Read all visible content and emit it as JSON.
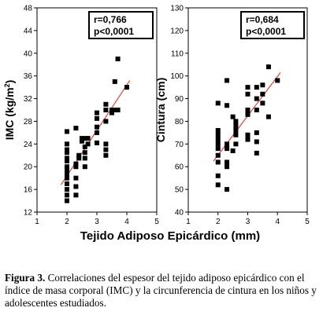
{
  "figure": {
    "shared_xlabel": "Tejido Adiposo Epicárdico (mm)",
    "caption_label": "Figura 3.",
    "caption_text": " Correlaciones del espesor del tejido adiposo epicárdico con el índice de masa corporal (IMC) y la circunferencia de cintura en los niños y adolescentes estudiados."
  },
  "chart_data": [
    {
      "type": "scatter",
      "ylabel_main": "IMC (kg/m",
      "ylabel_sup": "2",
      "ylabel_end": ")",
      "xlim": [
        1,
        5
      ],
      "ylim": [
        12,
        48
      ],
      "xticks": [
        1,
        2,
        3,
        4,
        5
      ],
      "yticks": [
        12,
        16,
        20,
        24,
        28,
        32,
        36,
        40,
        44,
        48
      ],
      "grid": false,
      "annotation": [
        "r=0,766",
        "p<0,0001"
      ],
      "regression_line": {
        "x": [
          1.8,
          4.1
        ],
        "y": [
          16.8,
          35.2
        ],
        "color": "#e8412f"
      },
      "x": [
        2,
        2,
        2,
        2,
        2,
        2,
        2,
        2,
        2,
        2,
        2,
        2,
        2,
        2,
        2,
        2.3,
        2.3,
        2.3,
        2.3,
        2.3,
        2.3,
        2.4,
        2.4,
        2.5,
        2.5,
        2.6,
        2.6,
        2.6,
        2.6,
        2.6,
        2.7,
        2.7,
        3,
        3,
        3,
        3,
        3,
        3.3,
        3.3,
        3.3,
        3.3,
        3.3,
        3.3,
        3.5,
        3.5,
        3.6,
        3.6,
        3.7,
        3.7,
        4
      ],
      "y": [
        14,
        15,
        16,
        17,
        18,
        18.5,
        19,
        19.5,
        20,
        21,
        21.5,
        22.5,
        23,
        24,
        26.2,
        15,
        16.5,
        18,
        20,
        20.5,
        26.8,
        21.5,
        22,
        24.5,
        25,
        20,
        21.5,
        22.5,
        23.5,
        25,
        24,
        25,
        24.2,
        26,
        27,
        28.5,
        29.5,
        22,
        23,
        24,
        28,
        30,
        31,
        29.5,
        30,
        30,
        35,
        30,
        39,
        34
      ]
    },
    {
      "type": "scatter",
      "ylabel": "Cintura (cm)",
      "xlim": [
        1,
        5
      ],
      "ylim": [
        40,
        130
      ],
      "xticks": [
        1,
        2,
        3,
        4,
        5
      ],
      "yticks": [
        40,
        50,
        60,
        70,
        80,
        90,
        100,
        110,
        120,
        130
      ],
      "grid": false,
      "annotation": [
        "r=0,684",
        "p<0,0001"
      ],
      "regression_line": {
        "x": [
          1.85,
          4.1
        ],
        "y": [
          62.5,
          101.5
        ],
        "color": "#e8412f"
      },
      "x": [
        2,
        2,
        2,
        2,
        2,
        2,
        2,
        2,
        2,
        2,
        2.3,
        2.3,
        2.3,
        2.3,
        2.3,
        2.3,
        2.3,
        2.5,
        2.5,
        2.6,
        2.6,
        2.6,
        2.6,
        2.6,
        3,
        3,
        3,
        3,
        3,
        3,
        3.3,
        3.3,
        3.3,
        3.3,
        3.3,
        3.3,
        3.5,
        3.5,
        3.5,
        3.7,
        3.7,
        4
      ],
      "y": [
        52,
        56,
        62,
        65,
        68,
        70,
        72,
        74,
        76,
        88,
        50,
        60,
        62,
        68,
        70,
        87,
        98,
        67,
        82,
        70,
        74,
        76,
        78,
        80,
        72,
        74,
        83,
        85,
        92,
        95,
        66,
        71,
        75,
        85,
        90,
        95,
        88,
        92,
        96,
        82,
        104,
        98
      ]
    }
  ]
}
